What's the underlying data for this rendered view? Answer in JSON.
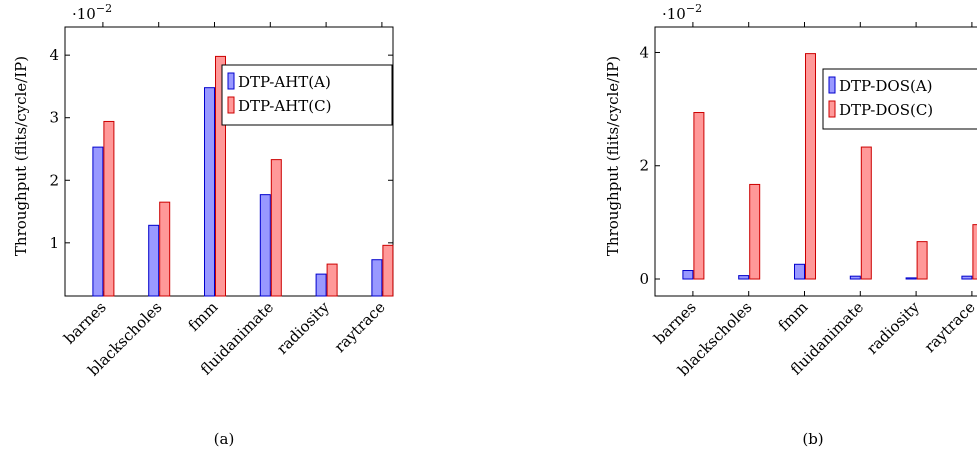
{
  "chart_data": [
    {
      "type": "bar",
      "caption": "(a)",
      "scale_label": "·10",
      "scale_exponent": "−2",
      "ylabel": "Throughput (flits/cycle/IP)",
      "xlabel": "",
      "ylim": [
        0.15,
        4.45
      ],
      "yticks": [
        1,
        2,
        3,
        4
      ],
      "categories": [
        "barnes",
        "blackscholes",
        "fmm",
        "fluidanimate",
        "radiosity",
        "raytrace"
      ],
      "series": [
        {
          "name": "DTP-AHT(A)",
          "color": "#9999ff",
          "stroke": "#0000cc",
          "values": [
            2.53,
            1.28,
            3.48,
            1.77,
            0.5,
            0.73
          ]
        },
        {
          "name": "DTP-AHT(C)",
          "color": "#ff9999",
          "stroke": "#cc0000",
          "values": [
            2.94,
            1.65,
            3.98,
            2.33,
            0.66,
            0.96
          ]
        }
      ],
      "legend": "top-right",
      "grid": false
    },
    {
      "type": "bar",
      "caption": "(b)",
      "scale_label": "·10",
      "scale_exponent": "−2",
      "ylabel": "Throughput (flits/cycle/IP)",
      "xlabel": "",
      "ylim": [
        -0.3,
        4.45
      ],
      "yticks": [
        0,
        2,
        4
      ],
      "categories": [
        "barnes",
        "blackscholes",
        "fmm",
        "fluidanimate",
        "radiosity",
        "raytrace"
      ],
      "series": [
        {
          "name": "DTP-DOS(A)",
          "color": "#9999ff",
          "stroke": "#0000cc",
          "values": [
            0.15,
            0.06,
            0.26,
            0.05,
            0.02,
            0.05
          ]
        },
        {
          "name": "DTP-DOS(C)",
          "color": "#ff9999",
          "stroke": "#cc0000",
          "values": [
            2.94,
            1.67,
            3.98,
            2.33,
            0.66,
            0.96
          ]
        }
      ],
      "legend": "top-right",
      "grid": false
    }
  ]
}
